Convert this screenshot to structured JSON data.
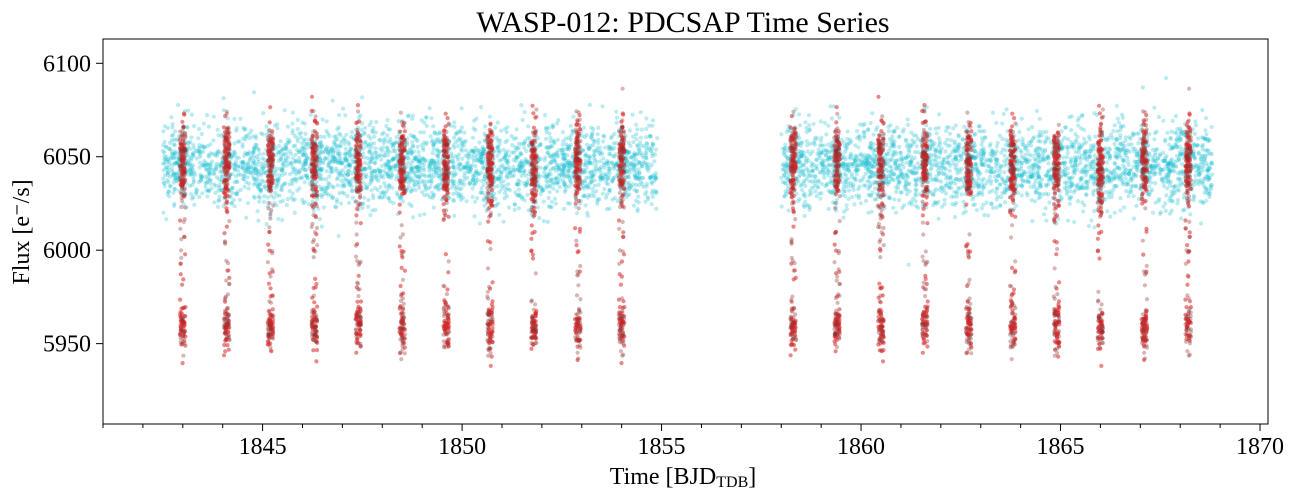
{
  "chart_data": {
    "type": "scatter",
    "title": "WASP-012: PDCSAP Time Series",
    "xlabel": "Time [BJD",
    "xlabel_sub": "TDB",
    "xlabel_suffix": "]",
    "ylabel": "Flux [e⁻/s]",
    "xlim": [
      1841.0,
      1870.2
    ],
    "ylim": [
      5907,
      6113
    ],
    "xticks": [
      1845,
      1850,
      1855,
      1860,
      1865,
      1870
    ],
    "yticks": [
      5950,
      6000,
      6050,
      6100
    ],
    "x_minor_step": 1,
    "series": [
      {
        "role": "baseline",
        "color": "#17becf",
        "segments": [
          [
            1842.5,
            1854.9
          ],
          [
            1858.0,
            1868.8
          ]
        ],
        "flux_center": 6045,
        "flux_spread": 11
      },
      {
        "role": "transit",
        "color": "#d62728",
        "edge_color": "#8c2d2d",
        "transit_times": [
          1843.0,
          1844.1,
          1845.2,
          1846.3,
          1847.4,
          1848.5,
          1849.6,
          1850.7,
          1851.8,
          1852.9,
          1854.0,
          1858.3,
          1859.4,
          1860.5,
          1861.6,
          1862.7,
          1863.8,
          1864.9,
          1866.0,
          1867.1,
          1868.2
        ],
        "transit_flux": 5958,
        "out_of_transit_flux": 6047
      }
    ]
  }
}
